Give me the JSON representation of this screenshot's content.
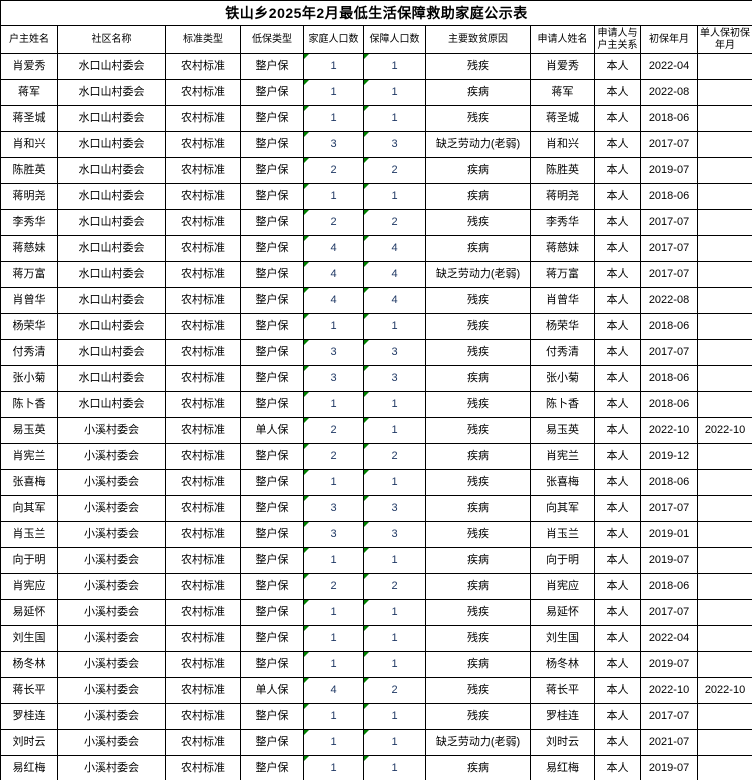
{
  "title": "铁山乡2025年2月最低生活保障救助家庭公示表",
  "colors": {
    "border": "#000000",
    "number_text": "#1F3864",
    "error_indicator_triangle": "#008000"
  },
  "table": {
    "columns": [
      {
        "key": "householder",
        "label": "户主姓名"
      },
      {
        "key": "community",
        "label": "社区名称"
      },
      {
        "key": "standard_type",
        "label": "标准类型"
      },
      {
        "key": "dibao_type",
        "label": "低保类型"
      },
      {
        "key": "family_count",
        "label": "家庭人口数",
        "numeric": true
      },
      {
        "key": "insured_count",
        "label": "保障人口数",
        "numeric": true
      },
      {
        "key": "poverty_cause",
        "label": "主要致贫原因"
      },
      {
        "key": "applicant",
        "label": "申请人姓名"
      },
      {
        "key": "relation",
        "label": "申请人与户主关系"
      },
      {
        "key": "first_date",
        "label": "初保年月"
      },
      {
        "key": "single_first_date",
        "label": "单人保初保年月"
      }
    ],
    "rows": [
      {
        "householder": "肖爱秀",
        "community": "水口山村委会",
        "standard_type": "农村标准",
        "dibao_type": "整户保",
        "family_count": 1,
        "insured_count": 1,
        "poverty_cause": "残疾",
        "applicant": "肖爱秀",
        "relation": "本人",
        "first_date": "2022-04",
        "single_first_date": ""
      },
      {
        "householder": "蒋军",
        "community": "水口山村委会",
        "standard_type": "农村标准",
        "dibao_type": "整户保",
        "family_count": 1,
        "insured_count": 1,
        "poverty_cause": "疾病",
        "applicant": "蒋军",
        "relation": "本人",
        "first_date": "2022-08",
        "single_first_date": ""
      },
      {
        "householder": "蒋圣城",
        "community": "水口山村委会",
        "standard_type": "农村标准",
        "dibao_type": "整户保",
        "family_count": 1,
        "insured_count": 1,
        "poverty_cause": "残疾",
        "applicant": "蒋圣城",
        "relation": "本人",
        "first_date": "2018-06",
        "single_first_date": ""
      },
      {
        "householder": "肖和兴",
        "community": "水口山村委会",
        "standard_type": "农村标准",
        "dibao_type": "整户保",
        "family_count": 3,
        "insured_count": 3,
        "poverty_cause": "缺乏劳动力(老弱)",
        "applicant": "肖和兴",
        "relation": "本人",
        "first_date": "2017-07",
        "single_first_date": ""
      },
      {
        "householder": "陈胜英",
        "community": "水口山村委会",
        "standard_type": "农村标准",
        "dibao_type": "整户保",
        "family_count": 2,
        "insured_count": 2,
        "poverty_cause": "疾病",
        "applicant": "陈胜英",
        "relation": "本人",
        "first_date": "2019-07",
        "single_first_date": ""
      },
      {
        "householder": "蒋明尧",
        "community": "水口山村委会",
        "standard_type": "农村标准",
        "dibao_type": "整户保",
        "family_count": 1,
        "insured_count": 1,
        "poverty_cause": "疾病",
        "applicant": "蒋明尧",
        "relation": "本人",
        "first_date": "2018-06",
        "single_first_date": ""
      },
      {
        "householder": "李秀华",
        "community": "水口山村委会",
        "standard_type": "农村标准",
        "dibao_type": "整户保",
        "family_count": 2,
        "insured_count": 2,
        "poverty_cause": "残疾",
        "applicant": "李秀华",
        "relation": "本人",
        "first_date": "2017-07",
        "single_first_date": ""
      },
      {
        "householder": "蒋慈妹",
        "community": "水口山村委会",
        "standard_type": "农村标准",
        "dibao_type": "整户保",
        "family_count": 4,
        "insured_count": 4,
        "poverty_cause": "疾病",
        "applicant": "蒋慈妹",
        "relation": "本人",
        "first_date": "2017-07",
        "single_first_date": ""
      },
      {
        "householder": "蒋万富",
        "community": "水口山村委会",
        "standard_type": "农村标准",
        "dibao_type": "整户保",
        "family_count": 4,
        "insured_count": 4,
        "poverty_cause": "缺乏劳动力(老弱)",
        "applicant": "蒋万富",
        "relation": "本人",
        "first_date": "2017-07",
        "single_first_date": ""
      },
      {
        "householder": "肖曾华",
        "community": "水口山村委会",
        "standard_type": "农村标准",
        "dibao_type": "整户保",
        "family_count": 4,
        "insured_count": 4,
        "poverty_cause": "残疾",
        "applicant": "肖曾华",
        "relation": "本人",
        "first_date": "2022-08",
        "single_first_date": ""
      },
      {
        "householder": "杨荣华",
        "community": "水口山村委会",
        "standard_type": "农村标准",
        "dibao_type": "整户保",
        "family_count": 1,
        "insured_count": 1,
        "poverty_cause": "残疾",
        "applicant": "杨荣华",
        "relation": "本人",
        "first_date": "2018-06",
        "single_first_date": ""
      },
      {
        "householder": "付秀清",
        "community": "水口山村委会",
        "standard_type": "农村标准",
        "dibao_type": "整户保",
        "family_count": 3,
        "insured_count": 3,
        "poverty_cause": "残疾",
        "applicant": "付秀清",
        "relation": "本人",
        "first_date": "2017-07",
        "single_first_date": ""
      },
      {
        "householder": "张小菊",
        "community": "水口山村委会",
        "standard_type": "农村标准",
        "dibao_type": "整户保",
        "family_count": 3,
        "insured_count": 3,
        "poverty_cause": "疾病",
        "applicant": "张小菊",
        "relation": "本人",
        "first_date": "2018-06",
        "single_first_date": ""
      },
      {
        "householder": "陈卜香",
        "community": "水口山村委会",
        "standard_type": "农村标准",
        "dibao_type": "整户保",
        "family_count": 1,
        "insured_count": 1,
        "poverty_cause": "残疾",
        "applicant": "陈卜香",
        "relation": "本人",
        "first_date": "2018-06",
        "single_first_date": ""
      },
      {
        "householder": "易玉英",
        "community": "小溪村委会",
        "standard_type": "农村标准",
        "dibao_type": "单人保",
        "family_count": 2,
        "insured_count": 1,
        "poverty_cause": "残疾",
        "applicant": "易玉英",
        "relation": "本人",
        "first_date": "2022-10",
        "single_first_date": "2022-10"
      },
      {
        "householder": "肖宪兰",
        "community": "小溪村委会",
        "standard_type": "农村标准",
        "dibao_type": "整户保",
        "family_count": 2,
        "insured_count": 2,
        "poverty_cause": "疾病",
        "applicant": "肖宪兰",
        "relation": "本人",
        "first_date": "2019-12",
        "single_first_date": ""
      },
      {
        "householder": "张喜梅",
        "community": "小溪村委会",
        "standard_type": "农村标准",
        "dibao_type": "整户保",
        "family_count": 1,
        "insured_count": 1,
        "poverty_cause": "残疾",
        "applicant": "张喜梅",
        "relation": "本人",
        "first_date": "2018-06",
        "single_first_date": ""
      },
      {
        "householder": "向其军",
        "community": "小溪村委会",
        "standard_type": "农村标准",
        "dibao_type": "整户保",
        "family_count": 3,
        "insured_count": 3,
        "poverty_cause": "疾病",
        "applicant": "向其军",
        "relation": "本人",
        "first_date": "2017-07",
        "single_first_date": ""
      },
      {
        "householder": "肖玉兰",
        "community": "小溪村委会",
        "standard_type": "农村标准",
        "dibao_type": "整户保",
        "family_count": 3,
        "insured_count": 3,
        "poverty_cause": "残疾",
        "applicant": "肖玉兰",
        "relation": "本人",
        "first_date": "2019-01",
        "single_first_date": ""
      },
      {
        "householder": "向于明",
        "community": "小溪村委会",
        "standard_type": "农村标准",
        "dibao_type": "整户保",
        "family_count": 1,
        "insured_count": 1,
        "poverty_cause": "疾病",
        "applicant": "向于明",
        "relation": "本人",
        "first_date": "2019-07",
        "single_first_date": ""
      },
      {
        "householder": "肖宪应",
        "community": "小溪村委会",
        "standard_type": "农村标准",
        "dibao_type": "整户保",
        "family_count": 2,
        "insured_count": 2,
        "poverty_cause": "疾病",
        "applicant": "肖宪应",
        "relation": "本人",
        "first_date": "2018-06",
        "single_first_date": ""
      },
      {
        "householder": "易延怀",
        "community": "小溪村委会",
        "standard_type": "农村标准",
        "dibao_type": "整户保",
        "family_count": 1,
        "insured_count": 1,
        "poverty_cause": "残疾",
        "applicant": "易延怀",
        "relation": "本人",
        "first_date": "2017-07",
        "single_first_date": ""
      },
      {
        "householder": "刘生国",
        "community": "小溪村委会",
        "standard_type": "农村标准",
        "dibao_type": "整户保",
        "family_count": 1,
        "insured_count": 1,
        "poverty_cause": "残疾",
        "applicant": "刘生国",
        "relation": "本人",
        "first_date": "2022-04",
        "single_first_date": ""
      },
      {
        "householder": "杨冬林",
        "community": "小溪村委会",
        "standard_type": "农村标准",
        "dibao_type": "整户保",
        "family_count": 1,
        "insured_count": 1,
        "poverty_cause": "疾病",
        "applicant": "杨冬林",
        "relation": "本人",
        "first_date": "2019-07",
        "single_first_date": ""
      },
      {
        "householder": "蒋长平",
        "community": "小溪村委会",
        "standard_type": "农村标准",
        "dibao_type": "单人保",
        "family_count": 4,
        "insured_count": 2,
        "poverty_cause": "残疾",
        "applicant": "蒋长平",
        "relation": "本人",
        "first_date": "2022-10",
        "single_first_date": "2022-10"
      },
      {
        "householder": "罗桂连",
        "community": "小溪村委会",
        "standard_type": "农村标准",
        "dibao_type": "整户保",
        "family_count": 1,
        "insured_count": 1,
        "poverty_cause": "残疾",
        "applicant": "罗桂连",
        "relation": "本人",
        "first_date": "2017-07",
        "single_first_date": ""
      },
      {
        "householder": "刘时云",
        "community": "小溪村委会",
        "standard_type": "农村标准",
        "dibao_type": "整户保",
        "family_count": 1,
        "insured_count": 1,
        "poverty_cause": "缺乏劳动力(老弱)",
        "applicant": "刘时云",
        "relation": "本人",
        "first_date": "2021-07",
        "single_first_date": ""
      },
      {
        "householder": "易红梅",
        "community": "小溪村委会",
        "standard_type": "农村标准",
        "dibao_type": "整户保",
        "family_count": 1,
        "insured_count": 1,
        "poverty_cause": "疾病",
        "applicant": "易红梅",
        "relation": "本人",
        "first_date": "2019-07",
        "single_first_date": ""
      }
    ]
  }
}
